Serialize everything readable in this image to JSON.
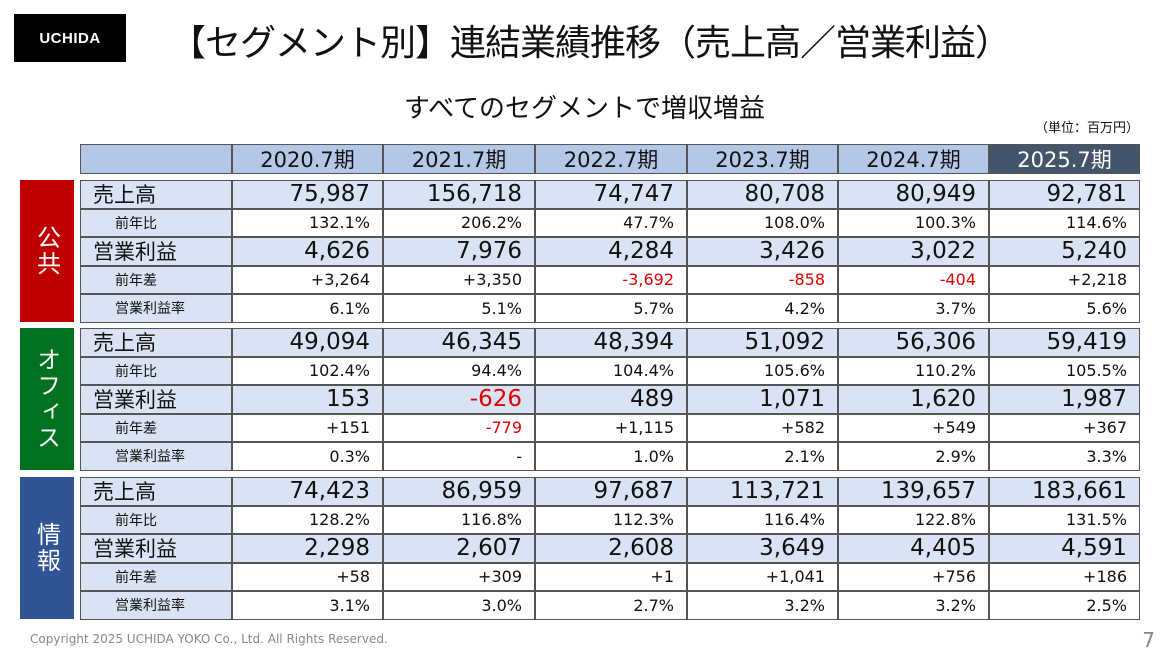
{
  "logo": "UCHIDA",
  "title": "【セグメント別】連結業績推移（売上高／営業利益）",
  "subtitle": "すべてのセグメントで増収増益",
  "unit": "（単位：百万円）",
  "colors": {
    "header": "#b4c7e7",
    "header_latest": "#44546a",
    "row_main": "#dae3f3",
    "negative": "#e00000",
    "public": "#c00000",
    "office": "#00711f",
    "info": "#2f5597"
  },
  "years": [
    "2020.7期",
    "2021.7期",
    "2022.7期",
    "2023.7期",
    "2024.7期",
    "2025.7期"
  ],
  "segments": [
    {
      "name": "公共",
      "color": "#c00000",
      "rows": [
        {
          "label": "売上高",
          "main": true,
          "values": [
            "75,987",
            "156,718",
            "74,747",
            "80,708",
            "80,949",
            "92,781"
          ]
        },
        {
          "label": "前年比",
          "values": [
            "132.1%",
            "206.2%",
            "47.7%",
            "108.0%",
            "100.3%",
            "114.6%"
          ]
        },
        {
          "label": "営業利益",
          "main": true,
          "values": [
            "4,626",
            "7,976",
            "4,284",
            "3,426",
            "3,022",
            "5,240"
          ]
        },
        {
          "label": "前年差",
          "values": [
            "+3,264",
            "+3,350",
            "-3,692",
            "-858",
            "-404",
            "+2,218"
          ]
        },
        {
          "label": "営業利益率",
          "values": [
            "6.1%",
            "5.1%",
            "5.7%",
            "4.2%",
            "3.7%",
            "5.6%"
          ]
        }
      ]
    },
    {
      "name": "オフィス",
      "color": "#00711f",
      "rows": [
        {
          "label": "売上高",
          "main": true,
          "values": [
            "49,094",
            "46,345",
            "48,394",
            "51,092",
            "56,306",
            "59,419"
          ]
        },
        {
          "label": "前年比",
          "values": [
            "102.4%",
            "94.4%",
            "104.4%",
            "105.6%",
            "110.2%",
            "105.5%"
          ]
        },
        {
          "label": "営業利益",
          "main": true,
          "values": [
            "153",
            "-626",
            "489",
            "1,071",
            "1,620",
            "1,987"
          ]
        },
        {
          "label": "前年差",
          "values": [
            "+151",
            "-779",
            "+1,115",
            "+582",
            "+549",
            "+367"
          ]
        },
        {
          "label": "営業利益率",
          "values": [
            "0.3%",
            "-",
            "1.0%",
            "2.1%",
            "2.9%",
            "3.3%"
          ]
        }
      ]
    },
    {
      "name": "情報",
      "color": "#2f5597",
      "rows": [
        {
          "label": "売上高",
          "main": true,
          "values": [
            "74,423",
            "86,959",
            "97,687",
            "113,721",
            "139,657",
            "183,661"
          ]
        },
        {
          "label": "前年比",
          "values": [
            "128.2%",
            "116.8%",
            "112.3%",
            "116.4%",
            "122.8%",
            "131.5%"
          ]
        },
        {
          "label": "営業利益",
          "main": true,
          "values": [
            "2,298",
            "2,607",
            "2,608",
            "3,649",
            "4,405",
            "4,591"
          ]
        },
        {
          "label": "前年差",
          "values": [
            "+58",
            "+309",
            "+1",
            "+1,041",
            "+756",
            "+186"
          ]
        },
        {
          "label": "営業利益率",
          "values": [
            "3.1%",
            "3.0%",
            "2.7%",
            "3.2%",
            "3.2%",
            "2.5%"
          ]
        }
      ]
    }
  ],
  "footer": "Copyright 2025 UCHIDA YOKO Co., Ltd. All Rights Reserved.",
  "page_number": "7"
}
